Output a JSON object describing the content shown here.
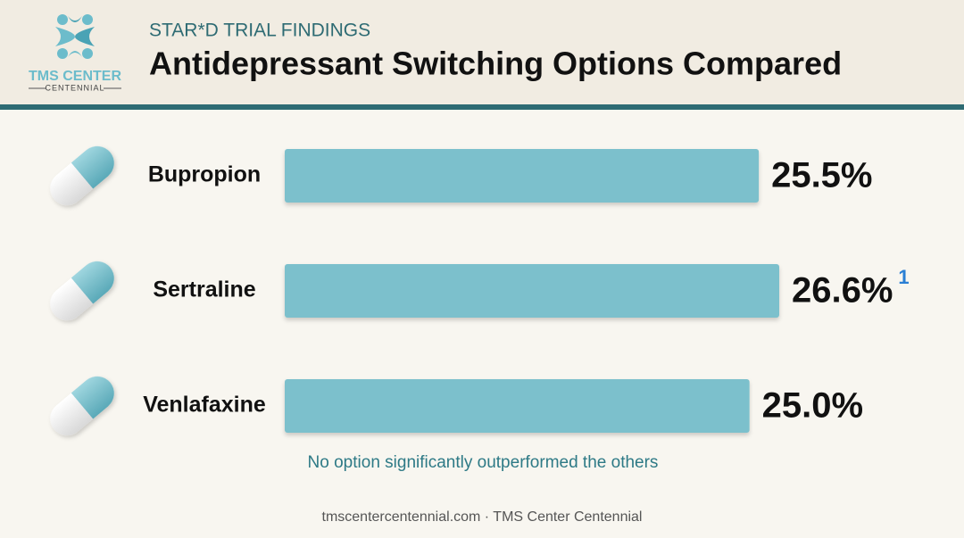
{
  "logo": {
    "name": "TMS CENTER",
    "sub": "CENTENNIAL"
  },
  "chart_data": {
    "type": "hbar",
    "subtitle": "STAR*D TRIAL FINDINGS",
    "title": "Antidepressant Switching Options Compared",
    "categories": [
      "Bupropion",
      "Sertraline",
      "Venlafaxine"
    ],
    "values": [
      25.5,
      26.6,
      25.0
    ],
    "value_labels": [
      "25.5%",
      "26.6%",
      "25.0%"
    ],
    "color": "#7cc0cc",
    "footnote": {
      "label": "1",
      "category": "Sertraline"
    },
    "note": "No option significantly outperformed the others",
    "source": "tmscentercentennial.com · TMS Center Centennial"
  }
}
